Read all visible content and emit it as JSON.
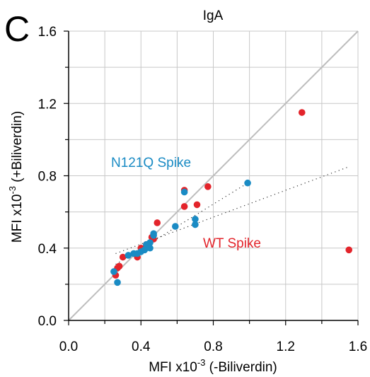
{
  "panel_label": "C",
  "chart_data": {
    "type": "scatter",
    "title": "IgA",
    "xlabel": "MFI x10",
    "xlabel_exp": "-3",
    "xlabel_suffix": " (-Biliverdin)",
    "ylabel": "MFI x10",
    "ylabel_exp": "-3",
    "ylabel_suffix": " (+Biliverdin)",
    "xlim": [
      0,
      1.6
    ],
    "ylim": [
      0,
      1.6
    ],
    "xticks": [
      "0.0",
      "0.4",
      "0.8",
      "1.2",
      "1.6"
    ],
    "yticks": [
      "0.0",
      "0.4",
      "0.8",
      "1.2",
      "1.6"
    ],
    "grid": true,
    "identity_line": true,
    "series": [
      {
        "name": "WT Spike",
        "color": "#e3242b",
        "x": [
          0.26,
          0.27,
          0.28,
          0.3,
          0.38,
          0.4,
          0.43,
          0.46,
          0.47,
          0.49,
          0.64,
          0.64,
          0.71,
          0.77,
          1.29,
          1.55
        ],
        "y": [
          0.25,
          0.29,
          0.3,
          0.35,
          0.35,
          0.4,
          0.42,
          0.46,
          0.45,
          0.54,
          0.63,
          0.72,
          0.64,
          0.74,
          1.15,
          0.39
        ],
        "trend": [
          [
            0.26,
            0.37
          ],
          [
            1.55,
            0.85
          ]
        ]
      },
      {
        "name": "N121Q Spike",
        "color": "#1a8bc4",
        "x": [
          0.25,
          0.27,
          0.33,
          0.36,
          0.38,
          0.4,
          0.42,
          0.43,
          0.45,
          0.45,
          0.47,
          0.47,
          0.59,
          0.64,
          0.7,
          0.7,
          0.99
        ],
        "y": [
          0.27,
          0.21,
          0.36,
          0.37,
          0.37,
          0.38,
          0.39,
          0.42,
          0.4,
          0.43,
          0.47,
          0.48,
          0.52,
          0.71,
          0.53,
          0.56,
          0.76
        ],
        "trend": [
          [
            0.26,
            0.31
          ],
          [
            0.99,
            0.76
          ]
        ]
      }
    ]
  }
}
